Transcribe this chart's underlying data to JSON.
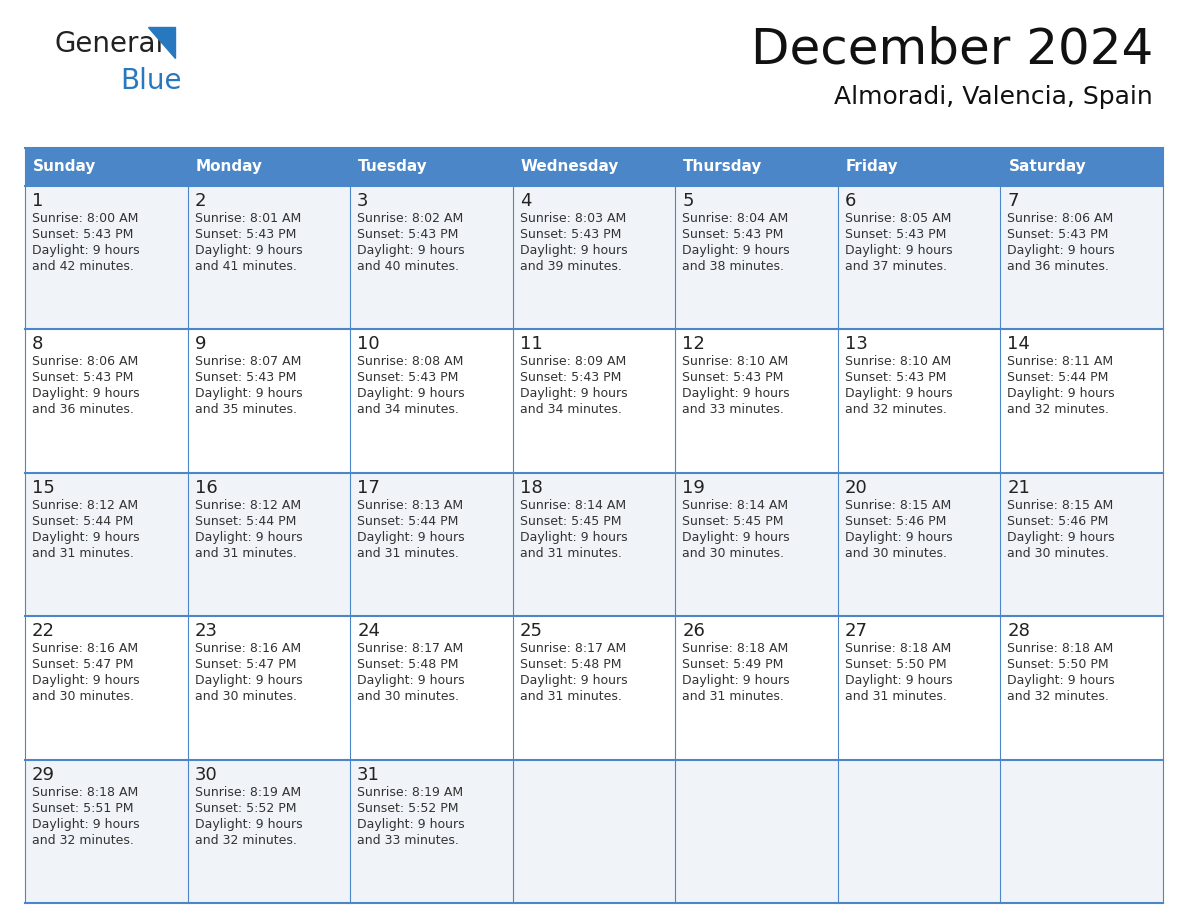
{
  "title": "December 2024",
  "subtitle": "Almoradi, Valencia, Spain",
  "header_color": "#4a86c8",
  "header_text_color": "#ffffff",
  "day_names": [
    "Sunday",
    "Monday",
    "Tuesday",
    "Wednesday",
    "Thursday",
    "Friday",
    "Saturday"
  ],
  "border_color": "#4a86c8",
  "row_bg_odd": "#f0f4f8",
  "row_bg_even": "#ffffff",
  "text_color": "#333333",
  "days": [
    {
      "day": 1,
      "col": 0,
      "row": 0,
      "sunrise": "8:00 AM",
      "sunset": "5:43 PM",
      "dl_hours": "9 hours",
      "dl_mins": "and 42 minutes."
    },
    {
      "day": 2,
      "col": 1,
      "row": 0,
      "sunrise": "8:01 AM",
      "sunset": "5:43 PM",
      "dl_hours": "9 hours",
      "dl_mins": "and 41 minutes."
    },
    {
      "day": 3,
      "col": 2,
      "row": 0,
      "sunrise": "8:02 AM",
      "sunset": "5:43 PM",
      "dl_hours": "9 hours",
      "dl_mins": "and 40 minutes."
    },
    {
      "day": 4,
      "col": 3,
      "row": 0,
      "sunrise": "8:03 AM",
      "sunset": "5:43 PM",
      "dl_hours": "9 hours",
      "dl_mins": "and 39 minutes."
    },
    {
      "day": 5,
      "col": 4,
      "row": 0,
      "sunrise": "8:04 AM",
      "sunset": "5:43 PM",
      "dl_hours": "9 hours",
      "dl_mins": "and 38 minutes."
    },
    {
      "day": 6,
      "col": 5,
      "row": 0,
      "sunrise": "8:05 AM",
      "sunset": "5:43 PM",
      "dl_hours": "9 hours",
      "dl_mins": "and 37 minutes."
    },
    {
      "day": 7,
      "col": 6,
      "row": 0,
      "sunrise": "8:06 AM",
      "sunset": "5:43 PM",
      "dl_hours": "9 hours",
      "dl_mins": "and 36 minutes."
    },
    {
      "day": 8,
      "col": 0,
      "row": 1,
      "sunrise": "8:06 AM",
      "sunset": "5:43 PM",
      "dl_hours": "9 hours",
      "dl_mins": "and 36 minutes."
    },
    {
      "day": 9,
      "col": 1,
      "row": 1,
      "sunrise": "8:07 AM",
      "sunset": "5:43 PM",
      "dl_hours": "9 hours",
      "dl_mins": "and 35 minutes."
    },
    {
      "day": 10,
      "col": 2,
      "row": 1,
      "sunrise": "8:08 AM",
      "sunset": "5:43 PM",
      "dl_hours": "9 hours",
      "dl_mins": "and 34 minutes."
    },
    {
      "day": 11,
      "col": 3,
      "row": 1,
      "sunrise": "8:09 AM",
      "sunset": "5:43 PM",
      "dl_hours": "9 hours",
      "dl_mins": "and 34 minutes."
    },
    {
      "day": 12,
      "col": 4,
      "row": 1,
      "sunrise": "8:10 AM",
      "sunset": "5:43 PM",
      "dl_hours": "9 hours",
      "dl_mins": "and 33 minutes."
    },
    {
      "day": 13,
      "col": 5,
      "row": 1,
      "sunrise": "8:10 AM",
      "sunset": "5:43 PM",
      "dl_hours": "9 hours",
      "dl_mins": "and 32 minutes."
    },
    {
      "day": 14,
      "col": 6,
      "row": 1,
      "sunrise": "8:11 AM",
      "sunset": "5:44 PM",
      "dl_hours": "9 hours",
      "dl_mins": "and 32 minutes."
    },
    {
      "day": 15,
      "col": 0,
      "row": 2,
      "sunrise": "8:12 AM",
      "sunset": "5:44 PM",
      "dl_hours": "9 hours",
      "dl_mins": "and 31 minutes."
    },
    {
      "day": 16,
      "col": 1,
      "row": 2,
      "sunrise": "8:12 AM",
      "sunset": "5:44 PM",
      "dl_hours": "9 hours",
      "dl_mins": "and 31 minutes."
    },
    {
      "day": 17,
      "col": 2,
      "row": 2,
      "sunrise": "8:13 AM",
      "sunset": "5:44 PM",
      "dl_hours": "9 hours",
      "dl_mins": "and 31 minutes."
    },
    {
      "day": 18,
      "col": 3,
      "row": 2,
      "sunrise": "8:14 AM",
      "sunset": "5:45 PM",
      "dl_hours": "9 hours",
      "dl_mins": "and 31 minutes."
    },
    {
      "day": 19,
      "col": 4,
      "row": 2,
      "sunrise": "8:14 AM",
      "sunset": "5:45 PM",
      "dl_hours": "9 hours",
      "dl_mins": "and 30 minutes."
    },
    {
      "day": 20,
      "col": 5,
      "row": 2,
      "sunrise": "8:15 AM",
      "sunset": "5:46 PM",
      "dl_hours": "9 hours",
      "dl_mins": "and 30 minutes."
    },
    {
      "day": 21,
      "col": 6,
      "row": 2,
      "sunrise": "8:15 AM",
      "sunset": "5:46 PM",
      "dl_hours": "9 hours",
      "dl_mins": "and 30 minutes."
    },
    {
      "day": 22,
      "col": 0,
      "row": 3,
      "sunrise": "8:16 AM",
      "sunset": "5:47 PM",
      "dl_hours": "9 hours",
      "dl_mins": "and 30 minutes."
    },
    {
      "day": 23,
      "col": 1,
      "row": 3,
      "sunrise": "8:16 AM",
      "sunset": "5:47 PM",
      "dl_hours": "9 hours",
      "dl_mins": "and 30 minutes."
    },
    {
      "day": 24,
      "col": 2,
      "row": 3,
      "sunrise": "8:17 AM",
      "sunset": "5:48 PM",
      "dl_hours": "9 hours",
      "dl_mins": "and 30 minutes."
    },
    {
      "day": 25,
      "col": 3,
      "row": 3,
      "sunrise": "8:17 AM",
      "sunset": "5:48 PM",
      "dl_hours": "9 hours",
      "dl_mins": "and 31 minutes."
    },
    {
      "day": 26,
      "col": 4,
      "row": 3,
      "sunrise": "8:18 AM",
      "sunset": "5:49 PM",
      "dl_hours": "9 hours",
      "dl_mins": "and 31 minutes."
    },
    {
      "day": 27,
      "col": 5,
      "row": 3,
      "sunrise": "8:18 AM",
      "sunset": "5:50 PM",
      "dl_hours": "9 hours",
      "dl_mins": "and 31 minutes."
    },
    {
      "day": 28,
      "col": 6,
      "row": 3,
      "sunrise": "8:18 AM",
      "sunset": "5:50 PM",
      "dl_hours": "9 hours",
      "dl_mins": "and 32 minutes."
    },
    {
      "day": 29,
      "col": 0,
      "row": 4,
      "sunrise": "8:18 AM",
      "sunset": "5:51 PM",
      "dl_hours": "9 hours",
      "dl_mins": "and 32 minutes."
    },
    {
      "day": 30,
      "col": 1,
      "row": 4,
      "sunrise": "8:19 AM",
      "sunset": "5:52 PM",
      "dl_hours": "9 hours",
      "dl_mins": "and 32 minutes."
    },
    {
      "day": 31,
      "col": 2,
      "row": 4,
      "sunrise": "8:19 AM",
      "sunset": "5:52 PM",
      "dl_hours": "9 hours",
      "dl_mins": "and 33 minutes."
    }
  ],
  "logo_general_color": "#222222",
  "logo_blue_color": "#2878c0",
  "logo_triangle_color": "#2878c0",
  "title_fontsize": 36,
  "subtitle_fontsize": 18,
  "header_fontsize": 11,
  "day_num_fontsize": 13,
  "cell_fontsize": 9
}
